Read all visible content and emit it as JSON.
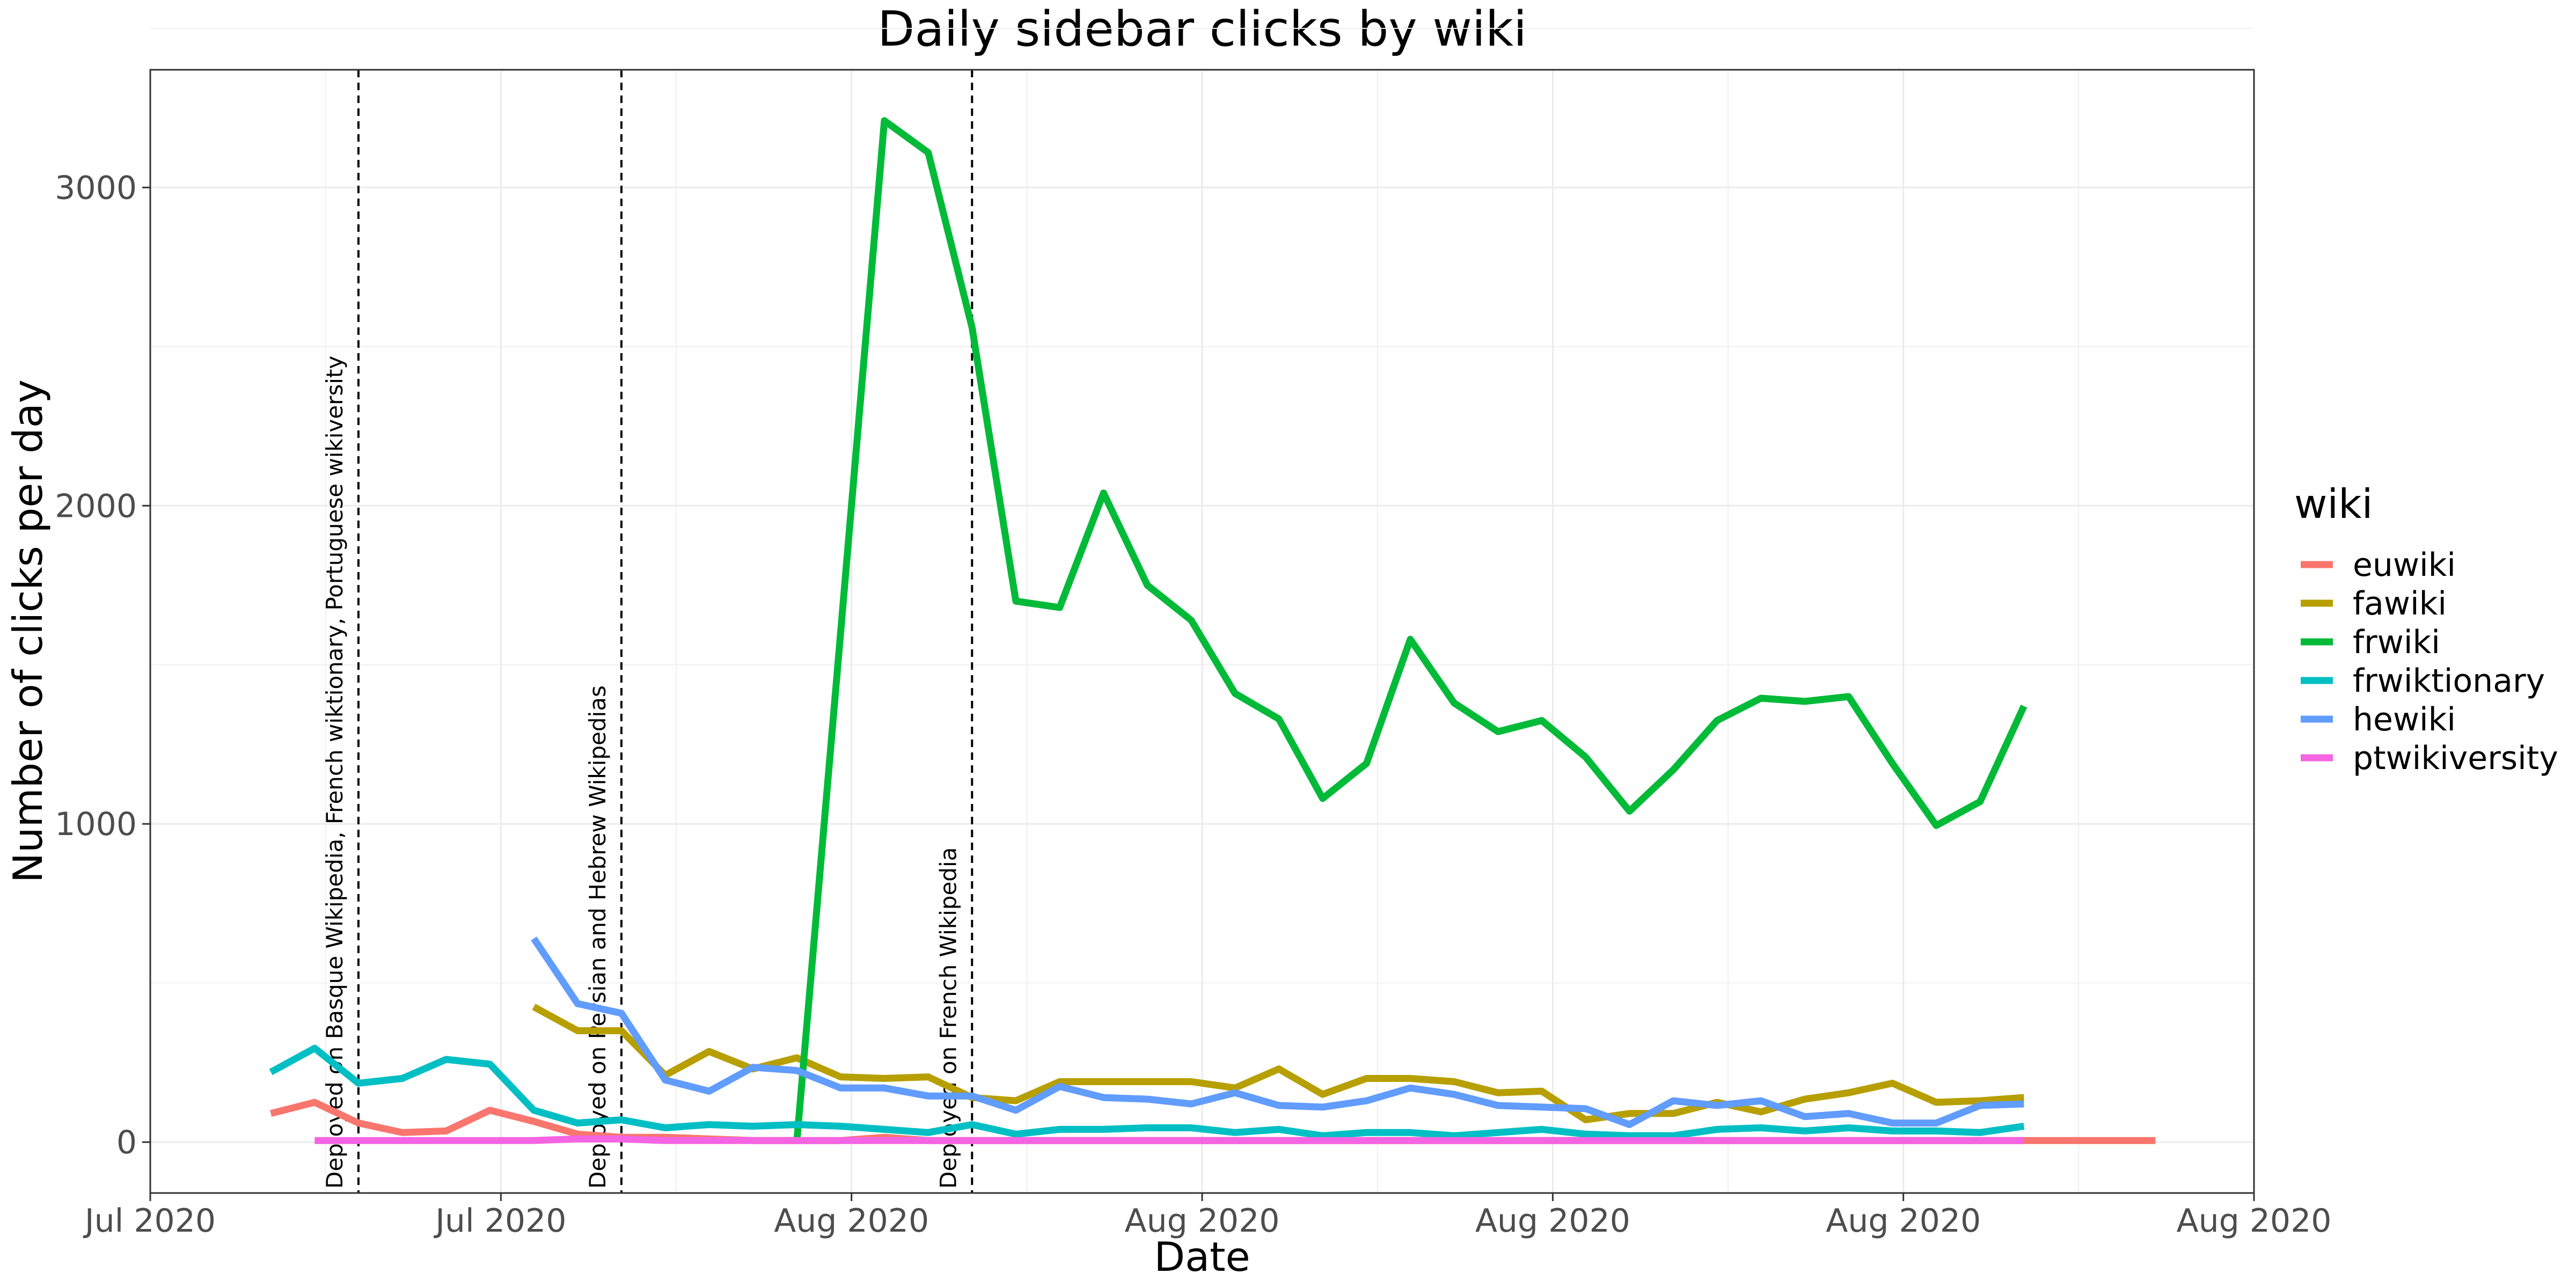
{
  "chart_data": {
    "type": "line",
    "title": "Daily sidebar clicks by wiki",
    "xlabel": "Date",
    "ylabel": "Number of clicks per day",
    "x_ticks": [
      "Jul 2020",
      "Jul 2020",
      "Aug 2020",
      "Aug 2020",
      "Aug 2020",
      "Aug 2020",
      "Aug 2020"
    ],
    "ylim": [
      -160,
      3370
    ],
    "y_ticks": [
      0,
      1000,
      2000,
      3000
    ],
    "grid": true,
    "legend": {
      "title": "wiki",
      "position": "right"
    },
    "x": [
      "2020-07-01",
      "2020-07-02",
      "2020-07-03",
      "2020-07-04",
      "2020-07-05",
      "2020-07-06",
      "2020-07-07",
      "2020-07-08",
      "2020-07-09",
      "2020-07-10",
      "2020-07-11",
      "2020-07-12",
      "2020-07-13",
      "2020-07-14",
      "2020-07-15",
      "2020-07-16",
      "2020-07-17",
      "2020-07-18",
      "2020-07-19",
      "2020-07-20",
      "2020-07-21",
      "2020-07-22",
      "2020-07-23",
      "2020-07-24",
      "2020-07-25",
      "2020-07-26",
      "2020-07-27",
      "2020-07-28",
      "2020-07-29",
      "2020-07-30",
      "2020-07-31",
      "2020-08-01",
      "2020-08-02",
      "2020-08-03",
      "2020-08-04",
      "2020-08-05",
      "2020-08-06",
      "2020-08-07",
      "2020-08-08",
      "2020-08-09",
      "2020-08-10",
      "2020-08-11",
      "2020-08-12",
      "2020-08-13"
    ],
    "series": [
      {
        "name": "euwiki",
        "color": "#F8766D",
        "values": [
          90,
          125,
          60,
          30,
          35,
          100,
          65,
          25,
          15,
          15,
          10,
          5,
          5,
          5,
          15,
          5,
          5,
          5,
          5,
          5,
          5,
          5,
          5,
          5,
          5,
          5,
          5,
          5,
          5,
          5,
          5,
          5,
          5,
          5,
          5,
          5,
          5,
          5,
          5,
          5,
          5,
          5,
          5,
          5
        ]
      },
      {
        "name": "fawiki",
        "color": "#B79F00",
        "values": [
          null,
          null,
          null,
          null,
          null,
          null,
          425,
          350,
          350,
          210,
          285,
          230,
          265,
          205,
          200,
          205,
          140,
          130,
          190,
          190,
          190,
          190,
          170,
          230,
          150,
          200,
          200,
          190,
          155,
          160,
          70,
          90,
          90,
          125,
          95,
          135,
          155,
          185,
          125,
          130,
          140,
          null,
          null,
          null
        ]
      },
      {
        "name": "frwiki",
        "color": "#00BA38",
        "values": [
          null,
          null,
          null,
          null,
          null,
          null,
          null,
          null,
          null,
          null,
          null,
          null,
          0,
          1600,
          3210,
          3110,
          2560,
          1700,
          1680,
          2040,
          1750,
          1640,
          1410,
          1330,
          1080,
          1190,
          1580,
          1380,
          1290,
          1325,
          1210,
          1040,
          1170,
          1325,
          1395,
          1385,
          1400,
          1190,
          995,
          1070,
          1370,
          null,
          null,
          null
        ]
      },
      {
        "name": "frwiktionary",
        "color": "#00BFC4",
        "values": [
          220,
          295,
          185,
          200,
          260,
          245,
          100,
          60,
          70,
          45,
          55,
          50,
          55,
          50,
          40,
          30,
          55,
          25,
          40,
          40,
          45,
          45,
          30,
          40,
          20,
          30,
          30,
          20,
          30,
          40,
          25,
          20,
          20,
          40,
          45,
          35,
          45,
          35,
          35,
          30,
          50,
          null,
          null,
          null
        ]
      },
      {
        "name": "hewiki",
        "color": "#619CFF",
        "values": [
          null,
          null,
          null,
          null,
          null,
          null,
          640,
          435,
          405,
          195,
          160,
          235,
          225,
          170,
          170,
          145,
          145,
          100,
          175,
          140,
          135,
          120,
          155,
          115,
          110,
          130,
          170,
          150,
          115,
          110,
          105,
          55,
          130,
          115,
          130,
          80,
          90,
          60,
          60,
          115,
          120,
          null,
          null,
          null
        ]
      },
      {
        "name": "ptwikiversity",
        "color": "#F564E3",
        "values": [
          null,
          5,
          5,
          5,
          5,
          5,
          5,
          10,
          10,
          5,
          5,
          5,
          5,
          5,
          5,
          5,
          5,
          5,
          5,
          5,
          5,
          5,
          5,
          5,
          5,
          5,
          5,
          5,
          5,
          5,
          5,
          5,
          5,
          5,
          5,
          5,
          5,
          5,
          5,
          5,
          5,
          null,
          null,
          null
        ]
      }
    ],
    "vlines": [
      {
        "date": "2020-07-03",
        "label": "Deployed on Basque Wikipedia, French wiktionary, Portuguese wikiversity"
      },
      {
        "date": "2020-07-09",
        "label": "Deployed on Persian and Hebrew Wikipedias"
      },
      {
        "date": "2020-07-17",
        "label": "Deployed on French Wikipedia"
      }
    ]
  }
}
